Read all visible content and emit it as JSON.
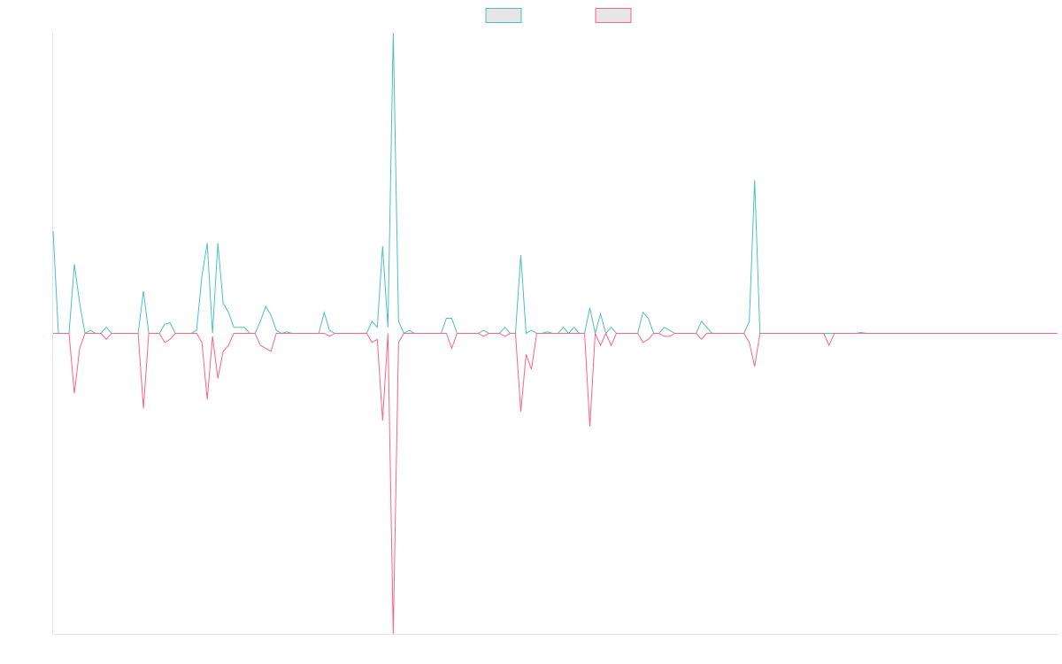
{
  "chart_data": {
    "type": "line",
    "ylim": [
      -100,
      100
    ],
    "legend": "top",
    "series": [
      {
        "color": "#4bc0c0",
        "values": [
          34,
          0,
          0,
          0,
          23,
          10,
          0,
          1,
          0,
          0,
          2,
          0,
          0,
          0,
          0,
          0,
          0,
          14,
          0,
          0,
          0,
          3,
          3.5,
          0,
          0,
          0,
          0,
          1,
          19,
          30,
          0,
          30,
          10,
          7,
          2,
          2,
          2,
          0,
          0,
          4,
          9,
          6,
          1,
          0,
          0.5,
          0,
          0,
          0,
          0,
          0,
          0,
          7,
          1,
          0,
          0,
          0,
          0,
          0,
          0,
          0,
          4,
          2,
          29,
          2,
          100,
          4,
          0,
          1,
          0,
          0,
          0,
          0,
          0,
          0,
          5,
          5,
          0,
          0,
          0,
          0,
          0,
          1,
          0,
          0,
          0,
          2,
          0,
          0,
          26,
          0,
          1,
          0,
          0,
          0.5,
          0,
          0,
          2,
          0,
          2,
          0,
          0,
          8.5,
          0,
          6.5,
          0,
          2,
          0,
          0,
          0,
          0,
          0,
          7,
          5,
          0,
          0,
          2,
          1,
          0,
          0,
          0,
          0,
          0,
          4,
          2,
          0,
          0,
          0,
          0,
          0,
          0,
          0,
          4,
          51,
          0,
          0,
          0,
          0,
          0,
          0,
          0,
          0,
          0,
          0,
          0,
          0,
          0,
          0,
          0,
          0,
          0,
          0,
          0,
          0.3,
          0,
          0,
          0,
          0,
          0,
          0,
          0,
          0,
          0,
          0,
          0,
          0,
          0,
          0,
          0,
          0,
          0,
          0,
          0,
          0,
          0,
          0,
          0,
          0,
          0,
          0,
          0,
          0,
          0,
          0,
          0,
          0,
          0,
          0,
          0,
          0,
          0
        ]
      },
      {
        "color": "#ff6384",
        "values": [
          0,
          0,
          0,
          0,
          -20,
          -5,
          0,
          0,
          0,
          0,
          -2,
          0,
          0,
          0,
          0,
          0,
          0,
          -25,
          0,
          0,
          0,
          -3,
          -2,
          0,
          0,
          0,
          0,
          0,
          -3,
          -22,
          -1,
          -15,
          -6,
          -4,
          0,
          0,
          0,
          0,
          0,
          -4,
          -5,
          -6,
          0,
          0,
          0,
          0,
          0,
          0,
          0,
          0,
          0,
          0,
          -1,
          0,
          0,
          0,
          0,
          0,
          0,
          0,
          -3,
          -2,
          -29,
          0,
          -100,
          -3,
          0,
          0,
          0,
          0,
          0,
          0,
          0,
          0,
          0,
          -5,
          0,
          0,
          0,
          0,
          0,
          -1,
          0,
          0,
          0,
          -1,
          0,
          0,
          -26,
          -7,
          -12,
          0,
          0,
          0,
          0,
          0,
          0,
          0,
          0,
          0,
          0,
          -31,
          0,
          -4,
          0,
          -4,
          0,
          0,
          0,
          0,
          0,
          -3,
          -2,
          0,
          0,
          -1,
          -1,
          0,
          0,
          0,
          0,
          0,
          -2,
          0,
          0,
          0,
          0,
          0,
          0,
          0,
          0,
          -3,
          -11,
          0,
          0,
          0,
          0,
          0,
          0,
          0,
          0,
          0,
          0,
          0,
          0,
          0,
          -4,
          0,
          0,
          0,
          0,
          0,
          0,
          0,
          0,
          0,
          0,
          0,
          0,
          0,
          0,
          0,
          0,
          0,
          0,
          0,
          0,
          0,
          0,
          0,
          0,
          0,
          0,
          0,
          0,
          0,
          0,
          0,
          0,
          0,
          0,
          0,
          0,
          0,
          0,
          0,
          0,
          0,
          0,
          0
        ]
      }
    ]
  }
}
